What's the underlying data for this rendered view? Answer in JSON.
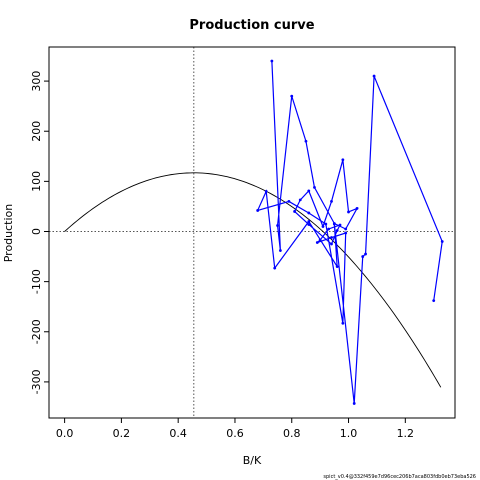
{
  "chart_data": {
    "type": "line",
    "title": "Production curve",
    "xlabel": "B/K",
    "ylabel": "Production",
    "xlim": [
      -0.055,
      1.375
    ],
    "ylim": [
      -372,
      368
    ],
    "xticks": [
      "0.0",
      "0.2",
      "0.4",
      "0.6",
      "0.8",
      "1.0",
      "1.2"
    ],
    "xtick_values": [
      0.0,
      0.2,
      0.4,
      0.6,
      0.8,
      1.0,
      1.2
    ],
    "yticks": [
      "-300",
      "-200",
      "-100",
      "0",
      "100",
      "200",
      "300"
    ],
    "ytick_values": [
      -300,
      -200,
      -100,
      0,
      100,
      200,
      300
    ],
    "grid": false,
    "reference_lines": {
      "vertical_x": 0.455,
      "horizontal_y": 0
    },
    "series": [
      {
        "color": "#0000ff",
        "x": [
          0.73,
          0.76,
          0.75,
          0.8,
          0.85,
          0.88,
          0.95,
          0.99,
          1.03,
          1.0,
          0.98,
          0.94,
          0.91,
          0.86,
          0.83,
          0.81,
          0.86,
          0.94,
          0.96,
          0.97,
          0.93,
          0.9,
          0.89,
          0.94,
          0.99,
          0.98,
          0.92,
          0.86,
          0.79,
          0.68,
          0.71,
          0.74,
          0.86,
          0.96,
          0.95,
          1.02,
          1.05,
          1.06,
          1.09,
          1.33,
          1.3
        ],
        "y": [
          340,
          -38,
          12,
          270,
          180,
          88,
          16,
          5,
          46,
          39,
          143,
          60,
          10,
          81,
          63,
          40,
          14,
          -25,
          2,
          13,
          5,
          -17,
          -22,
          -12,
          -3,
          -183,
          15,
          37,
          60,
          42,
          80,
          -73,
          20,
          -70,
          15,
          -343,
          -50,
          -45,
          310,
          -20,
          -138
        ]
      },
      {
        "name": "",
        "color": "#000000",
        "curve": {
          "r_times_K_scale": 117,
          "peak_x": 0.455,
          "end_x": 1.325
        }
      }
    ]
  },
  "footnote": "spict_v0.4@332f459e7d96cec206b7aca803fdb0eb73eba526"
}
